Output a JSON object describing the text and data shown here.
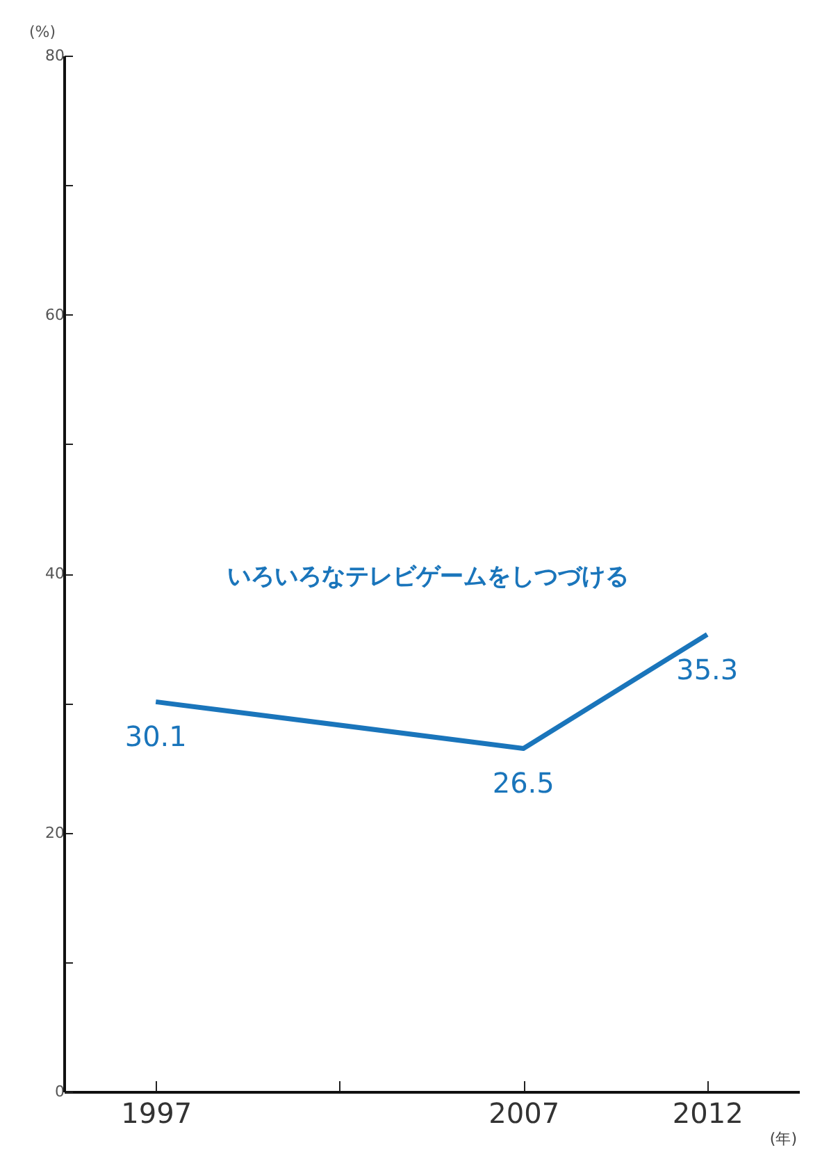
{
  "chart_data": {
    "type": "line",
    "xlabel": "(年)",
    "ylabel": "(%)",
    "x": [
      1997,
      2007,
      2012
    ],
    "series": [
      {
        "name": "いろいろなテレビゲームをしつづける",
        "color": "#1a75bb",
        "values": [
          30.1,
          26.5,
          35.3
        ]
      }
    ],
    "xlim": [
      1994.5,
      2014.5
    ],
    "xticks": [
      1997,
      {
        "value": 2002,
        "label": null
      },
      2007,
      2012
    ],
    "ylim": [
      0,
      80
    ],
    "yticks": [
      0,
      {
        "value": 10,
        "label": null
      },
      20,
      {
        "value": 30,
        "label": null
      },
      40,
      {
        "value": 50,
        "label": null
      },
      60,
      {
        "value": 70,
        "label": null
      },
      80
    ],
    "data_labels": true
  }
}
